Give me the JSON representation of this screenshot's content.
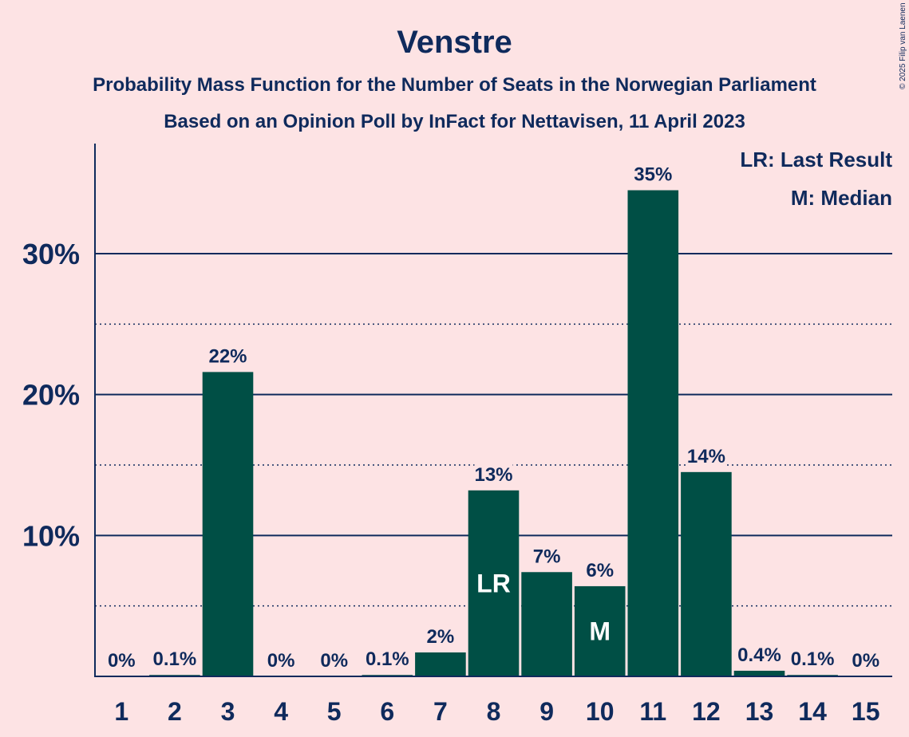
{
  "chart_data": {
    "type": "bar",
    "title": "Venstre",
    "subtitle_1": "Probability Mass Function for the Number of Seats in the Norwegian Parliament",
    "subtitle_2": "Based on an Opinion Poll by InFact for Nettavisen, 11 April 2023",
    "copyright": "© 2025 Filip van Laenen",
    "categories": [
      "1",
      "2",
      "3",
      "4",
      "5",
      "6",
      "7",
      "8",
      "9",
      "10",
      "11",
      "12",
      "13",
      "14",
      "15"
    ],
    "values": [
      0,
      0.1,
      21.6,
      0,
      0,
      0.1,
      1.7,
      13.2,
      7.4,
      6.4,
      34.5,
      14.5,
      0.4,
      0.1,
      0
    ],
    "value_labels": [
      "0%",
      "0.1%",
      "22%",
      "0%",
      "0%",
      "0.1%",
      "2%",
      "13%",
      "7%",
      "6%",
      "35%",
      "14%",
      "0.4%",
      "0.1%",
      "0%"
    ],
    "bar_annotations": [
      {
        "category": "8",
        "text": "LR"
      },
      {
        "category": "10",
        "text": "M"
      }
    ],
    "yticks": [
      {
        "value": 10,
        "label": "10%"
      },
      {
        "value": 20,
        "label": "20%"
      },
      {
        "value": 30,
        "label": "30%"
      }
    ],
    "minor_gridlines": [
      5,
      15,
      25
    ],
    "ylim": [
      0,
      37.5
    ],
    "grid": true,
    "legend": {
      "position": "top-right",
      "items": [
        "LR: Last Result",
        "M: Median"
      ]
    },
    "colors": {
      "bar": "#004f45",
      "text": "#0f2a5c",
      "background": "#fde3e4"
    }
  }
}
